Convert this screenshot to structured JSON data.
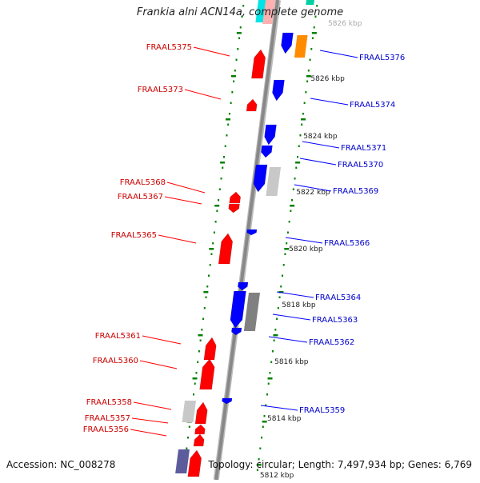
{
  "genome_title": "Frankia alni ACN14a, complete genome",
  "footer": {
    "accession": "Accession: NC_008278",
    "summary": "Topology: circular; Length: 7,497,934 bp; Genes: 6,769"
  },
  "colors": {
    "forward": "#ff0000",
    "reverse": "#0000ff",
    "label_forward": "#cc0000",
    "label_reverse": "#0000cc",
    "backbone": "#888888",
    "tick": "#008000",
    "orange": "#ff8c00",
    "gray": "#808080",
    "light_gray": "#c8c8c8",
    "cyan": "#00e5e5",
    "slate": "#5c5c9c"
  },
  "scale_labels": [
    "5826 kbp",
    "5824 kbp",
    "5822 kbp",
    "5820 kbp",
    "5818 kbp",
    "5816 kbp",
    "5814 kbp",
    "5812 kbp"
  ],
  "left_genes": [
    "FRAAL5375",
    "FRAAL5373",
    "FRAAL5368",
    "FRAAL5367",
    "FRAAL5365",
    "FRAAL5361",
    "FRAAL5360",
    "FRAAL5358",
    "FRAAL5357",
    "FRAAL5356"
  ],
  "right_genes": [
    "FRAAL5376",
    "FRAAL5374",
    "FRAAL5371",
    "FRAAL5370",
    "FRAAL5369",
    "FRAAL5366",
    "FRAAL5364",
    "FRAAL5363",
    "FRAAL5362",
    "FRAAL5359"
  ]
}
